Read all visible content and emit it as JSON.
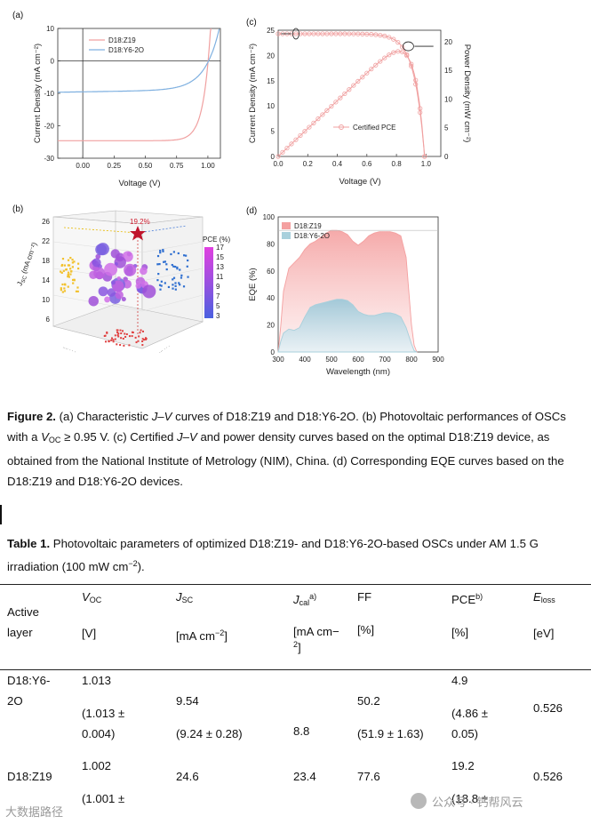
{
  "figure": {
    "panel_a": {
      "letter": "(a)",
      "chart_data": {
        "type": "line",
        "xlabel": "Voltage (V)",
        "ylabel": "Current Density (mA cm⁻²)",
        "xlim": [
          -0.2,
          1.1
        ],
        "ylim": [
          -30,
          10
        ],
        "xticks": [
          "0.00",
          "0.25",
          "0.50",
          "0.75",
          "1.00"
        ],
        "yticks": [
          "10",
          "0",
          "-10",
          "-20",
          "-30"
        ],
        "series": [
          {
            "name": "D18:Z19",
            "color": "#f0a0a0",
            "jsc": -24.6,
            "voc": 1.002
          },
          {
            "name": "D18:Y6-2O",
            "color": "#7fb0e0",
            "jsc": -9.54,
            "voc": 1.013
          }
        ]
      }
    },
    "panel_c": {
      "letter": "(c)",
      "chart_data": {
        "type": "line",
        "xlabel": "Voltage (V)",
        "ylabel": "Current Density (mA cm⁻²)",
        "y2label": "Power Density (mW cm⁻²)",
        "xlim": [
          0,
          1.1
        ],
        "ylim": [
          0,
          25
        ],
        "y2lim": [
          0,
          22
        ],
        "xticks": [
          "0.0",
          "0.2",
          "0.4",
          "0.6",
          "0.8",
          "1.0"
        ],
        "yticks": [
          "0",
          "5",
          "10",
          "15",
          "20",
          "25"
        ],
        "y2ticks": [
          "0",
          "5",
          "10",
          "15",
          "20"
        ],
        "legend": "Certified PCE",
        "color": "#f0a0a0",
        "jsc": 24.3,
        "voc": 0.99,
        "pmax": 19.2
      }
    },
    "panel_b": {
      "letter": "(b)",
      "zlabel": "J",
      "zlabel_sub": "SC",
      "zlabel_unit": "(mA cm⁻²)",
      "zticks": [
        "26",
        "22",
        "18",
        "14",
        "10",
        "6"
      ],
      "star_label": "19.2%",
      "colorbar_title": "PCE (%)",
      "colorbar_ticks": [
        "17",
        "15",
        "13",
        "11",
        "9",
        "7",
        "5",
        "3"
      ]
    },
    "panel_d": {
      "letter": "(d)",
      "chart_data": {
        "type": "area",
        "xlabel": "Wavelength (nm)",
        "ylabel": "EQE (%)",
        "xlim": [
          300,
          900
        ],
        "ylim": [
          0,
          100
        ],
        "xticks": [
          "300",
          "400",
          "500",
          "600",
          "700",
          "800",
          "900"
        ],
        "yticks": [
          "0",
          "20",
          "40",
          "60",
          "80",
          "100"
        ],
        "series": [
          {
            "name": "D18:Z19",
            "color": "#f4a0a0",
            "x": [
              300,
              310,
              320,
              340,
              360,
              380,
              400,
              420,
              440,
              460,
              480,
              500,
              520,
              540,
              560,
              580,
              600,
              620,
              640,
              660,
              680,
              700,
              720,
              740,
              760,
              780,
              800,
              810,
              820
            ],
            "values": [
              0,
              20,
              45,
              62,
              66,
              70,
              76,
              80,
              82,
              85,
              88,
              90,
              90,
              89,
              87,
              82,
              79,
              82,
              86,
              88,
              89,
              89,
              89,
              88,
              86,
              70,
              20,
              5,
              0
            ]
          },
          {
            "name": "D18:Y6-2O",
            "color": "#a8d0dc",
            "x": [
              300,
              310,
              320,
              340,
              360,
              380,
              400,
              420,
              440,
              460,
              480,
              500,
              520,
              540,
              560,
              580,
              600,
              620,
              640,
              660,
              680,
              700,
              720,
              740,
              760,
              780,
              800,
              810,
              820
            ],
            "values": [
              0,
              8,
              14,
              17,
              16,
              18,
              26,
              33,
              35,
              36,
              37,
              38,
              39,
              39,
              38,
              35,
              30,
              28,
              27,
              27,
              28,
              29,
              29,
              28,
              26,
              18,
              6,
              1,
              0
            ]
          }
        ]
      }
    }
  },
  "caption": {
    "fig_label": "Figure 2.",
    "text_1": " (a) Characteristic ",
    "jv": "J–V",
    "text_2": " curves of D18:Z19 and D18:Y6-2O. (b) Photovoltaic performances of OSCs with a ",
    "voc_v": "V",
    "voc_sub": "OC",
    "text_3": " ≥ 0.95 V. (c) Certified ",
    "jv2": "J–V",
    "text_4": " and power density curves based on the optimal D18:Z19 device, as obtained from the National Institute of Metrology (NIM), China. (d) Corresponding EQE curves based on the D18:Z19 and D18:Y6-2O devices."
  },
  "table_caption": {
    "label": "Table 1.",
    "text": " Photovoltaic parameters of optimized D18:Z19- and D18:Y6-2O-based OSCs under AM 1.5 G irradiation (100 mW cm",
    "sup": "−2",
    "end": ")."
  },
  "table": {
    "headers": {
      "active_line1": "Active",
      "active_line2": "layer",
      "voc": "V",
      "voc_sub": "OC",
      "voc_unit": "[V]",
      "jsc": "J",
      "jsc_sub": "SC",
      "jsc_unit": "[mA cm",
      "jsc_sup": "−2",
      "jsc_end": "]",
      "jcal": "J",
      "jcal_sub": "cal",
      "jcal_sup": "a)",
      "jcal_unit1": "[mA cm−",
      "jcal_unit2": "2",
      "jcal_unit3": "]",
      "ff": "FF",
      "ff_unit": "[%]",
      "pce": "PCE",
      "pce_sup": "b)",
      "pce_unit": "[%]",
      "eloss": "E",
      "eloss_sub": "loss",
      "eloss_unit": "[eV]"
    },
    "rows": [
      {
        "layer_1": "D18:Y6-",
        "layer_2": "2O",
        "voc": "1.013",
        "voc_avg_1": "(1.013 ±",
        "voc_avg_2": "0.004)",
        "jsc": "9.54",
        "jsc_avg": "(9.24 ± 0.28)",
        "jcal": "8.8",
        "ff": "50.2",
        "ff_avg": "(51.9 ± 1.63)",
        "pce": "4.9",
        "pce_avg_1": "(4.86 ±",
        "pce_avg_2": "0.05)",
        "eloss": "0.526"
      },
      {
        "layer_1": "D18:Z19",
        "voc": "1.002",
        "voc_avg_1": "(1.001 ±",
        "jsc": "24.6",
        "jcal": "23.4",
        "ff": "77.6",
        "pce": "19.2",
        "pce_avg_1": "(18.8 ±",
        "eloss": "0.526"
      }
    ]
  },
  "watermarks": {
    "left": "大数据路径",
    "right": "公众号 · 钙帮风云"
  }
}
